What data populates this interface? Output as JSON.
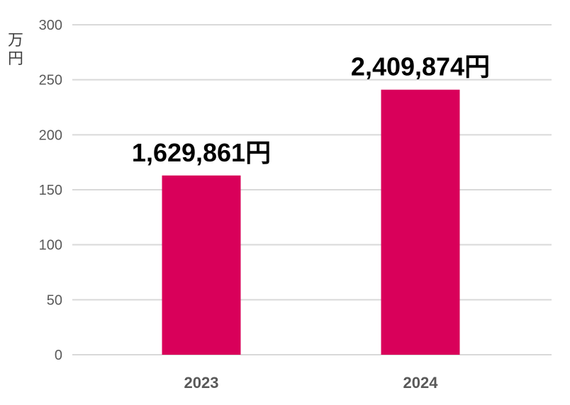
{
  "chart_data": {
    "type": "bar",
    "categories": [
      "2023",
      "2024"
    ],
    "values": [
      162.9861,
      240.9874
    ],
    "data_labels": [
      "1,629,861円",
      "2,409,874円"
    ],
    "ylabel": "万円",
    "ylim": [
      0,
      300
    ],
    "yticks": [
      0,
      50,
      100,
      150,
      200,
      250,
      300
    ],
    "grid": true,
    "legend": "none",
    "bar_color": "#d9005a"
  }
}
